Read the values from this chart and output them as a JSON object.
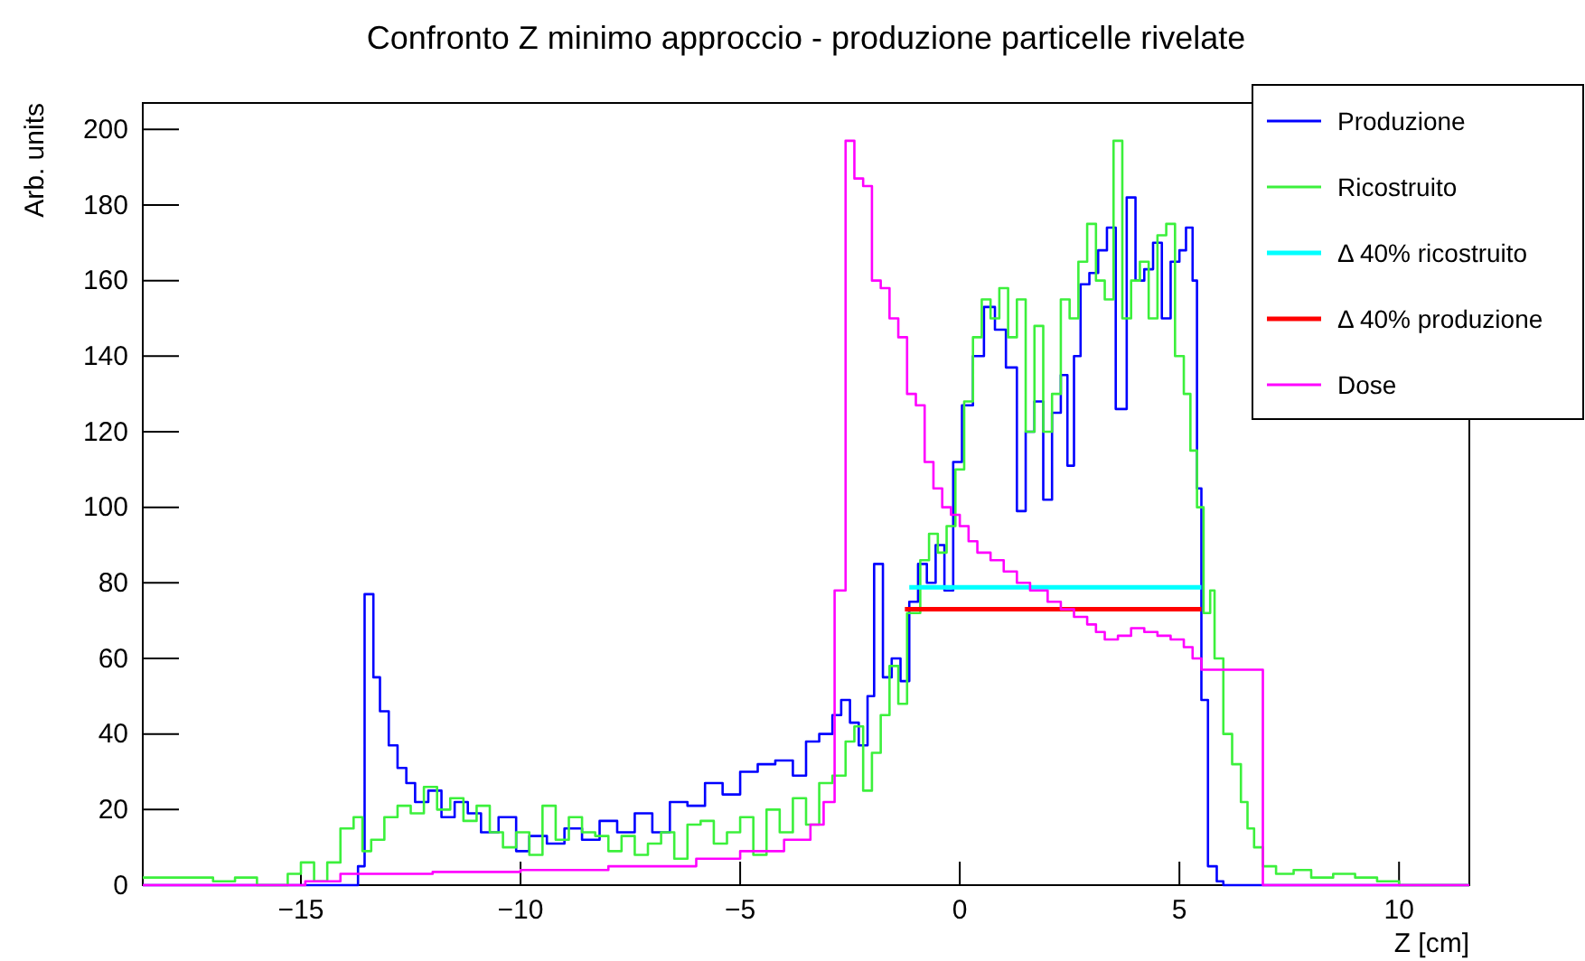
{
  "chart_data": {
    "type": "step",
    "title": "Confronto Z minimo approccio - produzione particelle rivelate",
    "xlabel": "Z [cm]",
    "ylabel": "Arb. units",
    "xlim": [
      -18.6,
      11.6
    ],
    "ylim": [
      0,
      207
    ],
    "xticks": [
      {
        "value": -15,
        "label": "−15"
      },
      {
        "value": -10,
        "label": "−10"
      },
      {
        "value": -5,
        "label": "−5"
      },
      0,
      5,
      10
    ],
    "yticks": [
      0,
      20,
      40,
      60,
      80,
      100,
      120,
      140,
      160,
      180,
      200
    ],
    "grid": false,
    "legend": "top right",
    "series": [
      {
        "name": "Produzione",
        "color": "#0000ff",
        "x": [
          -18.6,
          -13.7,
          -13.55,
          -13.35,
          -13.2,
          -13.0,
          -12.8,
          -12.6,
          -12.4,
          -12.1,
          -11.8,
          -11.5,
          -11.2,
          -10.9,
          -10.5,
          -10.1,
          -9.8,
          -9.4,
          -9.0,
          -8.6,
          -8.2,
          -7.8,
          -7.4,
          -7.0,
          -6.6,
          -6.2,
          -5.8,
          -5.4,
          -5.0,
          -4.6,
          -4.2,
          -3.8,
          -3.5,
          -3.2,
          -2.9,
          -2.7,
          -2.5,
          -2.3,
          -2.1,
          -1.95,
          -1.75,
          -1.55,
          -1.35,
          -1.15,
          -0.95,
          -0.75,
          -0.55,
          -0.35,
          -0.15,
          0.05,
          0.3,
          0.55,
          0.8,
          1.05,
          1.3,
          1.5,
          1.7,
          1.9,
          2.1,
          2.3,
          2.45,
          2.6,
          2.75,
          2.95,
          3.15,
          3.35,
          3.55,
          3.8,
          4.0,
          4.2,
          4.4,
          4.6,
          4.8,
          5.0,
          5.15,
          5.3,
          5.4,
          5.5,
          5.65,
          5.85,
          6.0,
          11.6
        ],
        "values": [
          0,
          5,
          77,
          55,
          46,
          37,
          31,
          27,
          22,
          25,
          18,
          22,
          19,
          14,
          18,
          9,
          13,
          11,
          15,
          12,
          17,
          14,
          19,
          14,
          22,
          21,
          27,
          24,
          30,
          32,
          33,
          29,
          38,
          40,
          45,
          49,
          43,
          37,
          50,
          85,
          55,
          60,
          54,
          75,
          85,
          80,
          90,
          78,
          112,
          127,
          140,
          153,
          147,
          137,
          99,
          120,
          128,
          102,
          125,
          135,
          111,
          140,
          159,
          162,
          168,
          174,
          126,
          182,
          160,
          163,
          170,
          150,
          165,
          168,
          174,
          160,
          105,
          49,
          5,
          1,
          0,
          0
        ]
      },
      {
        "name": "Ricostruito",
        "color": "#3cf03c",
        "x": [
          -18.6,
          -17,
          -16.5,
          -16,
          -15.3,
          -15.0,
          -14.7,
          -14.4,
          -14.1,
          -13.8,
          -13.6,
          -13.4,
          -13.1,
          -12.8,
          -12.5,
          -12.2,
          -11.9,
          -11.6,
          -11.3,
          -11.0,
          -10.7,
          -10.4,
          -10.1,
          -9.8,
          -9.5,
          -9.2,
          -8.9,
          -8.6,
          -8.3,
          -8.0,
          -7.7,
          -7.4,
          -7.1,
          -6.8,
          -6.5,
          -6.2,
          -5.9,
          -5.6,
          -5.3,
          -5.0,
          -4.7,
          -4.4,
          -4.1,
          -3.8,
          -3.5,
          -3.2,
          -2.9,
          -2.6,
          -2.4,
          -2.2,
          -2.0,
          -1.8,
          -1.6,
          -1.4,
          -1.2,
          -0.9,
          -0.7,
          -0.5,
          -0.3,
          -0.1,
          0.1,
          0.3,
          0.5,
          0.7,
          0.9,
          1.1,
          1.3,
          1.5,
          1.7,
          1.9,
          2.1,
          2.3,
          2.5,
          2.7,
          2.9,
          3.1,
          3.3,
          3.5,
          3.7,
          3.9,
          4.1,
          4.3,
          4.5,
          4.7,
          4.9,
          5.1,
          5.25,
          5.4,
          5.55,
          5.7,
          5.8,
          6.0,
          6.2,
          6.4,
          6.55,
          6.7,
          6.9,
          7.2,
          7.6,
          8.0,
          8.5,
          9.0,
          9.5,
          10.0,
          11.6
        ],
        "values": [
          2,
          1,
          2,
          0,
          3,
          6,
          1,
          6,
          15,
          18,
          9,
          12,
          18,
          21,
          19,
          26,
          20,
          23,
          17,
          21,
          14,
          10,
          14,
          8,
          21,
          12,
          18,
          14,
          13,
          9,
          13,
          8,
          11,
          14,
          7,
          16,
          17,
          11,
          14,
          18,
          8,
          20,
          14,
          23,
          16,
          27,
          29,
          38,
          42,
          25,
          35,
          45,
          58,
          48,
          72,
          86,
          93,
          88,
          95,
          110,
          128,
          145,
          155,
          150,
          158,
          145,
          155,
          120,
          148,
          120,
          130,
          155,
          150,
          165,
          175,
          160,
          155,
          197,
          150,
          160,
          165,
          150,
          172,
          175,
          140,
          130,
          115,
          100,
          72,
          78,
          60,
          40,
          32,
          22,
          15,
          10,
          5,
          3,
          4,
          2,
          3,
          2,
          1,
          0,
          0
        ]
      },
      {
        "name": "Δ 40% ricostruito",
        "color": "#00ffff",
        "type": "line",
        "x": [
          -1.15,
          5.5
        ],
        "values": [
          78.8,
          78.8
        ]
      },
      {
        "name": "Δ 40% produzione",
        "color": "#ff0000",
        "type": "line",
        "x": [
          -1.25,
          5.5
        ],
        "values": [
          73,
          73
        ]
      },
      {
        "name": "Dose",
        "color": "#ff00ff",
        "x": [
          -18.6,
          -14.9,
          -14.1,
          -12,
          -10,
          -8,
          -6,
          -5,
          -4,
          -3.4,
          -3.1,
          -2.85,
          -2.6,
          -2.4,
          -2.2,
          -2.0,
          -1.8,
          -1.6,
          -1.4,
          -1.2,
          -1.0,
          -0.8,
          -0.6,
          -0.4,
          -0.2,
          0.0,
          0.2,
          0.4,
          0.7,
          1.0,
          1.3,
          1.6,
          2.0,
          2.3,
          2.6,
          2.9,
          3.1,
          3.3,
          3.6,
          3.9,
          4.2,
          4.5,
          4.8,
          5.1,
          5.3,
          5.5,
          6.9,
          11.6
        ],
        "values": [
          0,
          1,
          3,
          3.5,
          4,
          5,
          7,
          9,
          12,
          16,
          22,
          78,
          197,
          187,
          185,
          160,
          158,
          150,
          145,
          130,
          127,
          112,
          105,
          100,
          98,
          95,
          91,
          88,
          86,
          83,
          80,
          78,
          75,
          73,
          71,
          69,
          67,
          65,
          66,
          68,
          67,
          66,
          65,
          63,
          60,
          57,
          0,
          0
        ]
      }
    ]
  }
}
